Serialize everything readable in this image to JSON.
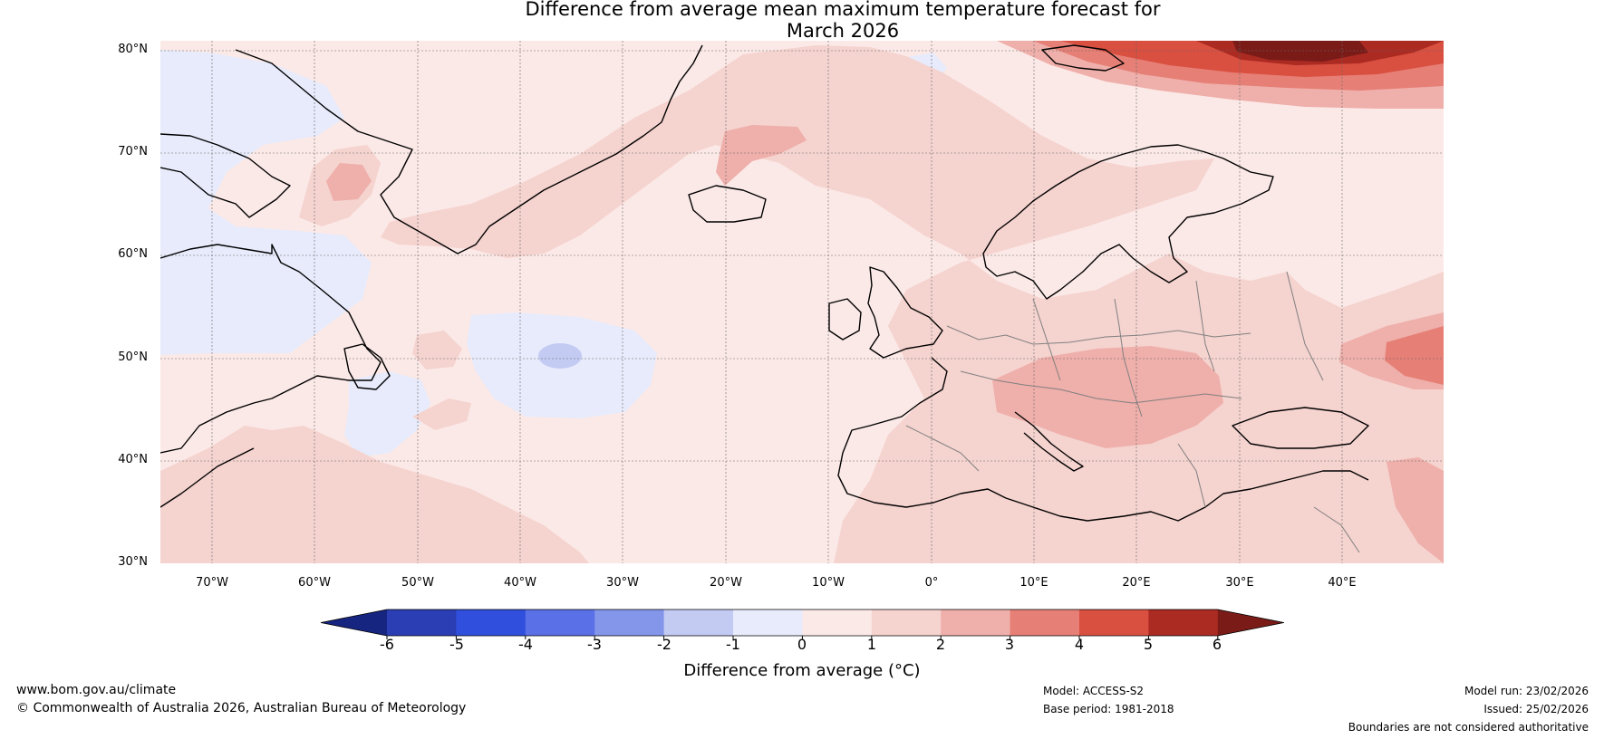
{
  "title": {
    "line1": "Difference from average mean maximum temperature forecast for",
    "line2": "March 2026"
  },
  "map": {
    "region": "North Atlantic and Europe",
    "projection": "PlateCarree",
    "lon_range": [
      -75,
      50
    ],
    "lat_range": [
      30,
      81
    ],
    "lat_ticks": [
      "30°N",
      "40°N",
      "50°N",
      "60°N",
      "70°N",
      "80°N"
    ],
    "lon_ticks": [
      "70°W",
      "60°W",
      "50°W",
      "40°W",
      "30°W",
      "20°W",
      "10°W",
      "0°",
      "10°E",
      "20°E",
      "30°E",
      "40°E"
    ],
    "colors": {
      "cool_-1_0": "#e7ebfb",
      "cool_-2_-1": "#c3cbf3",
      "warm_0_1": "#fbe9e7",
      "warm_1_2": "#f5d3cf",
      "warm_2_3": "#efafaa",
      "warm_3_4": "#e67f76",
      "warm_4_5": "#d94f40",
      "warm_5_6": "#ab2a22",
      "warm_gt_6": "#7a1b18",
      "coastline": "#000000",
      "border": "#808080",
      "gridline": "#555555"
    }
  },
  "colorbar": {
    "ticks": [
      "-6",
      "-5",
      "-4",
      "-3",
      "-2",
      "-1",
      "0",
      "1",
      "2",
      "3",
      "4",
      "5",
      "6"
    ],
    "colors": [
      "#162580",
      "#2b3eb4",
      "#2f4fdc",
      "#5a70e6",
      "#8496ea",
      "#c3cbf3",
      "#e7ebfb",
      "#fbe9e7",
      "#f5d3cf",
      "#efafaa",
      "#e67f76",
      "#d94f40",
      "#ab2a22",
      "#7a1b18"
    ],
    "label": "Difference from average (°C)"
  },
  "footer": {
    "website": "www.bom.gov.au/climate",
    "copyright": "© Commonwealth of Australia 2026, Australian Bureau of Meteorology",
    "model": "Model: ACCESS-S2",
    "base_period": "Base period: 1981-2018",
    "model_run": "Model run: 23/02/2026",
    "issued": "Issued: 25/02/2026",
    "disclaimer": "Boundaries are not considered authoritative"
  }
}
